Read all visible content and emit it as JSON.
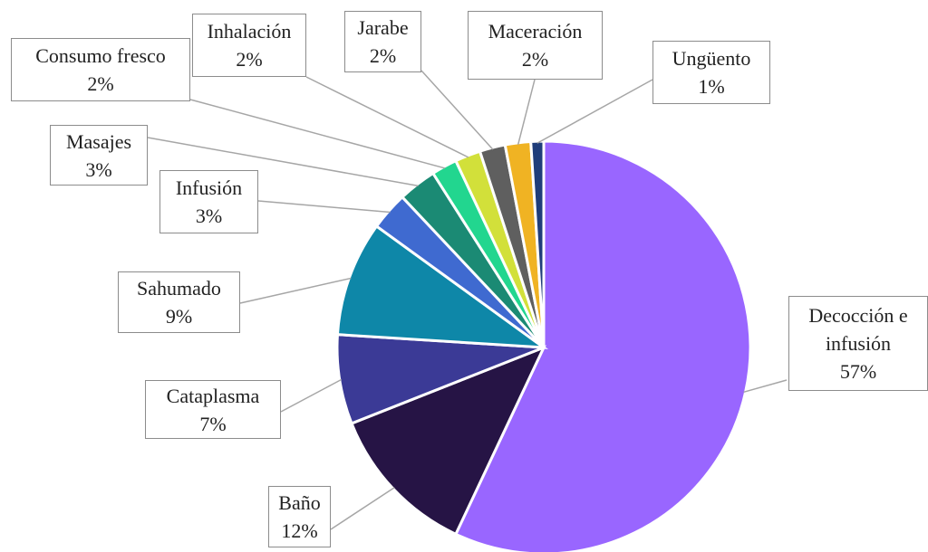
{
  "chart_data": {
    "type": "pie",
    "categories": [
      "Decocción e infusión",
      "Baño",
      "Cataplasma",
      "Sahumado",
      "Infusión",
      "Masajes",
      "Consumo fresco",
      "Inhalación",
      "Jarabe",
      "Maceración",
      "Ungüento"
    ],
    "values": [
      57,
      12,
      7,
      9,
      3,
      3,
      2,
      2,
      2,
      2,
      1
    ],
    "value_labels": [
      "57%",
      "12%",
      "7%",
      "9%",
      "3%",
      "3%",
      "2%",
      "2%",
      "2%",
      "2%",
      "1%"
    ],
    "colors": [
      "#9966ff",
      "#261445",
      "#3b3a96",
      "#0e87a8",
      "#3f6ad0",
      "#1b8a74",
      "#22d68f",
      "#d2e03a",
      "#5f5f5f",
      "#f0b323",
      "#1f3d7a"
    ]
  }
}
